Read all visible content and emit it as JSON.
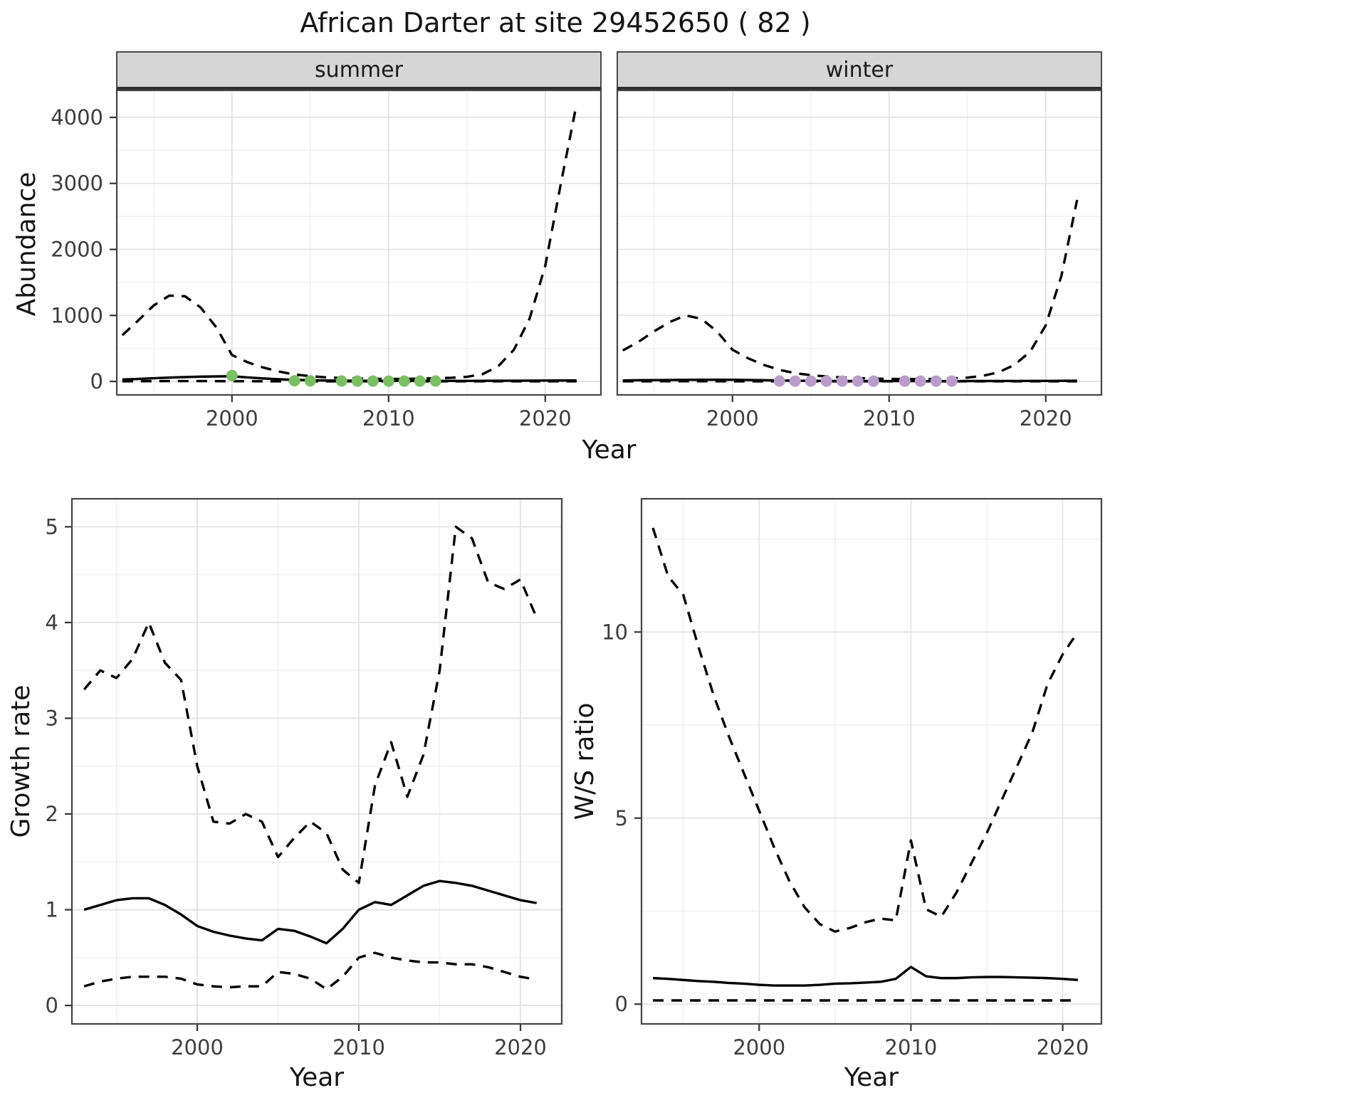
{
  "title": "African Darter at site 29452650 ( 82 )",
  "colors": {
    "summer_points": "#7abf63",
    "winter_points": "#b89dca",
    "line": "#000000",
    "strip_background": "#d6d6d6",
    "panel_border": "#454545",
    "grid_major": "#e3e3e3",
    "grid_minor": "#f0f0f0"
  },
  "chart_data": [
    {
      "id": "abundance",
      "type": "line",
      "xlabel": "Year",
      "ylabel": "Abundance",
      "xlim": [
        1992.6,
        2023.6
      ],
      "ylim": [
        -215,
        4420
      ],
      "xticks": [
        2000,
        2010,
        2020
      ],
      "xticks_minor": [
        1995,
        2005,
        2015
      ],
      "yticks": [
        0,
        1000,
        2000,
        3000,
        4000
      ],
      "yticks_minor": [
        500,
        1500,
        2500,
        3500
      ],
      "facets": [
        {
          "label": "summer",
          "point_color": "#7abf63",
          "series": [
            {
              "name": "median",
              "style": "solid",
              "x": [
                1993,
                1994,
                1995,
                1996,
                1997,
                1998,
                1999,
                2000,
                2001,
                2002,
                2003,
                2004,
                2005,
                2006,
                2007,
                2008,
                2009,
                2010,
                2011,
                2012,
                2013,
                2014,
                2015,
                2016,
                2017,
                2018,
                2019,
                2020,
                2021,
                2022
              ],
              "y": [
                30,
                38,
                48,
                58,
                66,
                72,
                76,
                78,
                60,
                45,
                33,
                24,
                18,
                14,
                12,
                10,
                9,
                8,
                8,
                8,
                8,
                8,
                8,
                9,
                10,
                11,
                12,
                13,
                14,
                15
              ]
            },
            {
              "name": "upper-ci",
              "style": "dashed",
              "x": [
                1993,
                1994,
                1995,
                1996,
                1997,
                1998,
                1999,
                2000,
                2001,
                2002,
                2003,
                2004,
                2005,
                2006,
                2007,
                2008,
                2009,
                2010,
                2011,
                2012,
                2013,
                2014,
                2015,
                2016,
                2017,
                2018,
                2019,
                2020,
                2021,
                2022
              ],
              "y": [
                700,
                920,
                1150,
                1300,
                1290,
                1120,
                820,
                400,
                290,
                210,
                150,
                105,
                80,
                62,
                52,
                45,
                40,
                38,
                38,
                42,
                48,
                55,
                70,
                110,
                230,
                480,
                950,
                1750,
                3000,
                4200
              ]
            },
            {
              "name": "lower-ci",
              "style": "dashed",
              "x": [
                1993,
                1994,
                1995,
                1996,
                1997,
                1998,
                1999,
                2000,
                2001,
                2002,
                2003,
                2004,
                2005,
                2006,
                2007,
                2008,
                2009,
                2010,
                2011,
                2012,
                2013,
                2014,
                2015,
                2016,
                2017,
                2018,
                2019,
                2020,
                2021,
                2022
              ],
              "y": [
                2,
                3,
                4,
                5,
                5,
                5,
                4,
                3,
                3,
                2,
                2,
                2,
                1,
                1,
                1,
                1,
                1,
                1,
                1,
                1,
                1,
                1,
                1,
                1,
                1,
                2,
                2,
                2,
                2,
                2
              ]
            }
          ],
          "points": {
            "x": [
              2000,
              2004,
              2005,
              2007,
              2008,
              2009,
              2010,
              2011,
              2012,
              2013
            ],
            "y": [
              90,
              10,
              8,
              6,
              5,
              5,
              5,
              5,
              5,
              6
            ]
          }
        },
        {
          "label": "winter",
          "point_color": "#b89dca",
          "series": [
            {
              "name": "median",
              "style": "solid",
              "x": [
                1993,
                1994,
                1995,
                1996,
                1997,
                1998,
                1999,
                2000,
                2001,
                2002,
                2003,
                2004,
                2005,
                2006,
                2007,
                2008,
                2009,
                2010,
                2011,
                2012,
                2013,
                2014,
                2015,
                2016,
                2017,
                2018,
                2019,
                2020,
                2021,
                2022
              ],
              "y": [
                15,
                18,
                20,
                22,
                24,
                25,
                26,
                26,
                22,
                18,
                14,
                11,
                9,
                8,
                7,
                6,
                6,
                5,
                5,
                5,
                5,
                5,
                6,
                6,
                7,
                7,
                8,
                8,
                9,
                10
              ]
            },
            {
              "name": "upper-ci",
              "style": "dashed",
              "x": [
                1993,
                1994,
                1995,
                1996,
                1997,
                1998,
                1999,
                2000,
                2001,
                2002,
                2003,
                2004,
                2005,
                2006,
                2007,
                2008,
                2009,
                2010,
                2011,
                2012,
                2013,
                2014,
                2015,
                2016,
                2017,
                2018,
                2019,
                2020,
                2021,
                2022
              ],
              "y": [
                470,
                600,
                760,
                900,
                1000,
                950,
                760,
                480,
                350,
                250,
                175,
                125,
                95,
                75,
                60,
                50,
                43,
                38,
                36,
                36,
                40,
                46,
                58,
                85,
                140,
                250,
                450,
                850,
                1600,
                2750
              ]
            },
            {
              "name": "lower-ci",
              "style": "dashed",
              "x": [
                1993,
                1994,
                1995,
                1996,
                1997,
                1998,
                1999,
                2000,
                2001,
                2002,
                2003,
                2004,
                2005,
                2006,
                2007,
                2008,
                2009,
                2010,
                2011,
                2012,
                2013,
                2014,
                2015,
                2016,
                2017,
                2018,
                2019,
                2020,
                2021,
                2022
              ],
              "y": [
                1,
                2,
                2,
                3,
                3,
                3,
                2,
                2,
                2,
                1,
                1,
                1,
                1,
                1,
                1,
                1,
                1,
                1,
                1,
                1,
                1,
                1,
                1,
                1,
                1,
                1,
                1,
                1,
                1,
                1
              ]
            }
          ],
          "points": {
            "x": [
              2003,
              2004,
              2005,
              2006,
              2007,
              2008,
              2009,
              2011,
              2012,
              2013,
              2014
            ],
            "y": [
              6,
              5,
              5,
              4,
              4,
              4,
              4,
              4,
              4,
              4,
              5
            ]
          }
        }
      ]
    },
    {
      "id": "growth_rate",
      "type": "line",
      "xlabel": "Year",
      "ylabel": "Growth rate",
      "xlim": [
        1992.2,
        2022.6
      ],
      "ylim": [
        -0.2,
        5.3
      ],
      "xticks": [
        2000,
        2010,
        2020
      ],
      "xticks_minor": [
        1995,
        2005,
        2015
      ],
      "yticks": [
        0,
        1,
        2,
        3,
        4,
        5
      ],
      "yticks_minor": [
        0.5,
        1.5,
        2.5,
        3.5,
        4.5
      ],
      "series": [
        {
          "name": "median",
          "style": "solid",
          "x": [
            1993,
            1994,
            1995,
            1996,
            1997,
            1998,
            1999,
            2000,
            2001,
            2002,
            2003,
            2004,
            2005,
            2006,
            2007,
            2008,
            2009,
            2010,
            2011,
            2012,
            2013,
            2014,
            2015,
            2016,
            2017,
            2018,
            2019,
            2020,
            2021
          ],
          "y": [
            1.0,
            1.05,
            1.1,
            1.12,
            1.12,
            1.05,
            0.95,
            0.83,
            0.77,
            0.73,
            0.7,
            0.68,
            0.8,
            0.78,
            0.72,
            0.65,
            0.8,
            1.0,
            1.08,
            1.05,
            1.15,
            1.25,
            1.3,
            1.28,
            1.25,
            1.2,
            1.15,
            1.1,
            1.07
          ]
        },
        {
          "name": "upper-ci",
          "style": "dashed",
          "x": [
            1993,
            1994,
            1995,
            1996,
            1997,
            1998,
            1999,
            2000,
            2001,
            2002,
            2003,
            2004,
            2005,
            2006,
            2007,
            2008,
            2009,
            2010,
            2011,
            2012,
            2013,
            2014,
            2015,
            2016,
            2017,
            2018,
            2019,
            2020,
            2021
          ],
          "y": [
            3.3,
            3.5,
            3.42,
            3.62,
            4.0,
            3.58,
            3.4,
            2.5,
            1.92,
            1.9,
            2.0,
            1.92,
            1.55,
            1.75,
            1.92,
            1.8,
            1.42,
            1.28,
            2.3,
            2.75,
            2.18,
            2.62,
            3.5,
            5.0,
            4.88,
            4.42,
            4.35,
            4.45,
            4.05
          ]
        },
        {
          "name": "lower-ci",
          "style": "dashed",
          "x": [
            1993,
            1994,
            1995,
            1996,
            1997,
            1998,
            1999,
            2000,
            2001,
            2002,
            2003,
            2004,
            2005,
            2006,
            2007,
            2008,
            2009,
            2010,
            2011,
            2012,
            2013,
            2014,
            2015,
            2016,
            2017,
            2018,
            2019,
            2020,
            2021
          ],
          "y": [
            0.2,
            0.25,
            0.28,
            0.3,
            0.3,
            0.3,
            0.28,
            0.22,
            0.2,
            0.19,
            0.2,
            0.2,
            0.35,
            0.33,
            0.28,
            0.17,
            0.3,
            0.5,
            0.55,
            0.5,
            0.47,
            0.45,
            0.45,
            0.43,
            0.43,
            0.4,
            0.35,
            0.3,
            0.27
          ]
        }
      ]
    },
    {
      "id": "ws_ratio",
      "type": "line",
      "xlabel": "Year",
      "ylabel": "W/S ratio",
      "xlim": [
        1992.2,
        2022.6
      ],
      "ylim": [
        -0.55,
        13.6
      ],
      "xticks": [
        2000,
        2010,
        2020
      ],
      "xticks_minor": [
        1995,
        2005,
        2015
      ],
      "yticks": [
        0,
        5,
        10
      ],
      "yticks_minor": [
        2.5,
        7.5,
        12.5
      ],
      "series": [
        {
          "name": "median",
          "style": "solid",
          "x": [
            1993,
            1994,
            1995,
            1996,
            1997,
            1998,
            1999,
            2000,
            2001,
            2002,
            2003,
            2004,
            2005,
            2006,
            2007,
            2008,
            2009,
            2010,
            2011,
            2012,
            2013,
            2014,
            2015,
            2016,
            2017,
            2018,
            2019,
            2020,
            2021
          ],
          "y": [
            0.7,
            0.68,
            0.65,
            0.62,
            0.6,
            0.57,
            0.55,
            0.52,
            0.5,
            0.5,
            0.5,
            0.52,
            0.55,
            0.56,
            0.58,
            0.6,
            0.68,
            1.0,
            0.75,
            0.7,
            0.7,
            0.72,
            0.73,
            0.73,
            0.72,
            0.71,
            0.7,
            0.68,
            0.65
          ]
        },
        {
          "name": "upper-ci",
          "style": "dashed",
          "x": [
            1993,
            1994,
            1995,
            1996,
            1997,
            1998,
            1999,
            2000,
            2001,
            2002,
            2003,
            2004,
            2005,
            2006,
            2007,
            2008,
            2009,
            2010,
            2011,
            2012,
            2013,
            2014,
            2015,
            2016,
            2017,
            2018,
            2019,
            2020,
            2021
          ],
          "y": [
            12.8,
            11.5,
            11.0,
            9.6,
            8.3,
            7.2,
            6.2,
            5.2,
            4.2,
            3.3,
            2.6,
            2.15,
            1.95,
            2.05,
            2.2,
            2.3,
            2.25,
            4.4,
            2.55,
            2.35,
            3.0,
            3.8,
            4.6,
            5.5,
            6.4,
            7.3,
            8.6,
            9.4,
            10.0
          ]
        },
        {
          "name": "lower-ci",
          "style": "dashed",
          "x": [
            1993,
            1994,
            1995,
            1996,
            1997,
            1998,
            1999,
            2000,
            2001,
            2002,
            2003,
            2004,
            2005,
            2006,
            2007,
            2008,
            2009,
            2010,
            2011,
            2012,
            2013,
            2014,
            2015,
            2016,
            2017,
            2018,
            2019,
            2020,
            2021
          ],
          "y": [
            0.1,
            0.1,
            0.1,
            0.1,
            0.1,
            0.1,
            0.1,
            0.1,
            0.1,
            0.1,
            0.1,
            0.1,
            0.1,
            0.1,
            0.1,
            0.1,
            0.1,
            0.1,
            0.1,
            0.1,
            0.1,
            0.1,
            0.1,
            0.1,
            0.1,
            0.1,
            0.1,
            0.1,
            0.1
          ]
        }
      ]
    }
  ]
}
